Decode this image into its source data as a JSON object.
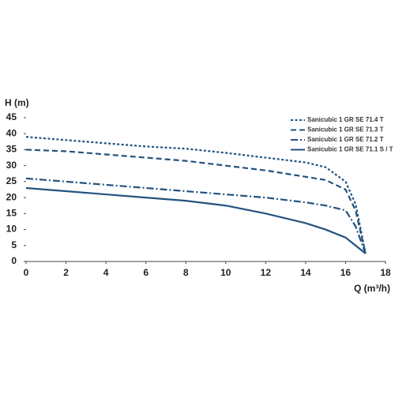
{
  "chart_data": {
    "type": "line",
    "x_label": "Q (m³/h)",
    "y_label": "H (m)",
    "x": [
      0,
      2,
      4,
      6,
      8,
      10,
      12,
      14,
      15,
      16,
      16.5,
      17
    ],
    "series": [
      {
        "name": "Sanicubic 1 GR SE 71.4 T",
        "color": "#24527f",
        "dash": "3,2.5",
        "values": [
          39,
          38,
          37,
          36,
          35.3,
          34,
          32.5,
          31,
          29.5,
          25,
          18,
          2.5
        ]
      },
      {
        "name": "Sanicubic 1 GR SE 71.3 T",
        "color": "#24527f",
        "dash": "7,4",
        "values": [
          35,
          34.5,
          33.5,
          32.5,
          31.5,
          30,
          28.5,
          26.5,
          25.5,
          22.5,
          16,
          2.5
        ]
      },
      {
        "name": "Sanicubic 1 GR SE 71.2 T",
        "color": "#24527f",
        "dash": "9,3,2,3",
        "values": [
          26,
          25,
          24,
          23,
          22,
          21,
          20,
          18.5,
          17.5,
          16,
          11,
          2.5
        ]
      },
      {
        "name": "Sanicubic 1 GR SE 71.1 S / T",
        "color": "#24527f",
        "dash": "",
        "values": [
          23,
          22,
          21,
          20,
          19,
          17.5,
          15,
          12,
          10,
          7.5,
          5,
          2.5
        ]
      }
    ],
    "xlim": [
      0,
      18
    ],
    "xticks": [
      0,
      2,
      4,
      6,
      8,
      10,
      12,
      14,
      16,
      18
    ],
    "ylim": [
      0,
      45
    ],
    "yticks": [
      0,
      5,
      10,
      15,
      20,
      25,
      30,
      35,
      40,
      45
    ]
  }
}
